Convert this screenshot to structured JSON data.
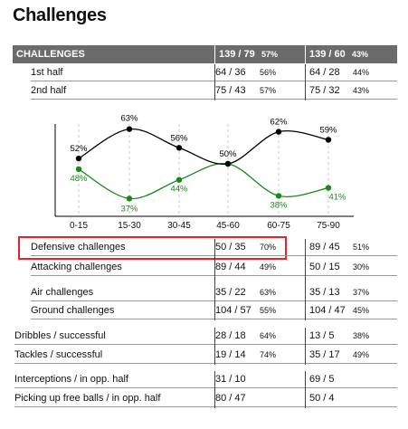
{
  "title": "Challenges",
  "header": {
    "label": "CHALLENGES",
    "team1_value": "139 / 79",
    "team1_pct": "57%",
    "team2_value": "139 / 60",
    "team2_pct": "43%"
  },
  "rows": [
    {
      "label": "1st half",
      "v1": "64 / 36",
      "p1": "56%",
      "v2": "64 / 28",
      "p2": "44%"
    },
    {
      "label": "2nd half",
      "v1": "75 / 43",
      "p1": "57%",
      "v2": "75 / 32",
      "p2": "43%"
    },
    {
      "label": "Defensive challenges",
      "v1": "50 / 35",
      "p1": "70%",
      "v2": "89 / 45",
      "p2": "51%"
    },
    {
      "label": "Attacking challenges",
      "v1": "89 / 44",
      "p1": "49%",
      "v2": "50 / 15",
      "p2": "30%"
    },
    {
      "label": "Air challenges",
      "v1": "35 / 22",
      "p1": "63%",
      "v2": "35 / 13",
      "p2": "37%"
    },
    {
      "label": "Ground challenges",
      "v1": "104 / 57",
      "p1": "55%",
      "v2": "104 / 47",
      "p2": "45%"
    },
    {
      "label": "Dribbles / successful",
      "v1": "28 / 18",
      "p1": "64%",
      "v2": "13 / 5",
      "p2": "38%"
    },
    {
      "label": "Tackles / successful",
      "v1": "19 / 14",
      "p1": "74%",
      "v2": "35 / 17",
      "p2": "49%"
    },
    {
      "label": "Interceptions / in opp. half",
      "v1": "31 / 10",
      "p1": "",
      "v2": "69 / 5",
      "p2": ""
    },
    {
      "label": "Picking up free balls / in opp. half",
      "v1": "80 / 47",
      "p1": "",
      "v2": "50 / 4",
      "p2": ""
    }
  ],
  "chart_data": {
    "type": "line",
    "categories": [
      "0-15",
      "15-30",
      "30-45",
      "45-60",
      "60-75",
      "75-90"
    ],
    "series": [
      {
        "values": [
          52,
          63,
          56,
          50,
          62,
          59
        ],
        "labels": [
          "52%",
          "63%",
          "56%",
          "50%",
          "62%",
          "59%"
        ],
        "color": "#000000"
      },
      {
        "values": [
          48,
          37,
          44,
          50,
          38,
          41
        ],
        "labels": [
          "48%",
          "37%",
          "44%",
          "",
          "38%",
          "41%"
        ],
        "color": "#1a8a1a"
      }
    ],
    "ylim": [
      30,
      70
    ],
    "grid": "vertical-dashed"
  },
  "colors": {
    "header_bg": "#6b6b6b",
    "highlight": "#e0262d"
  }
}
